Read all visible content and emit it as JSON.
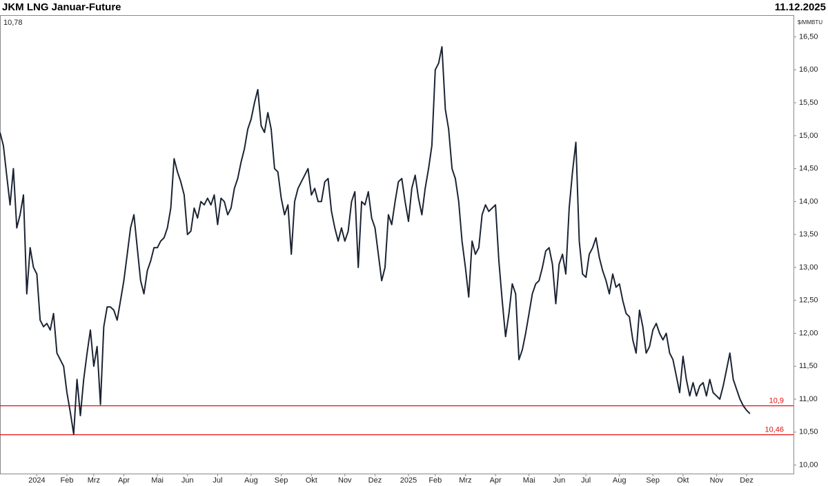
{
  "chart_data": {
    "type": "line",
    "title": "JKM LNG Januar-Future",
    "date": "11.12.2025",
    "last_value_label": "10,78",
    "y_unit": "$/MMBTU",
    "series": [
      {
        "name": "JKM LNG Januar-Future",
        "color": "#1b2333",
        "values": [
          15.05,
          14.85,
          14.4,
          13.95,
          14.5,
          13.6,
          13.8,
          14.1,
          12.6,
          13.3,
          13.0,
          12.9,
          12.2,
          12.1,
          12.15,
          12.05,
          12.3,
          11.7,
          11.6,
          11.5,
          11.1,
          10.8,
          10.47,
          11.3,
          10.75,
          11.3,
          11.7,
          12.05,
          11.5,
          11.8,
          10.92,
          12.1,
          12.4,
          12.4,
          12.35,
          12.2,
          12.5,
          12.8,
          13.2,
          13.6,
          13.8,
          13.3,
          12.8,
          12.6,
          12.95,
          13.1,
          13.3,
          13.3,
          13.4,
          13.45,
          13.6,
          13.9,
          14.65,
          14.45,
          14.3,
          14.1,
          13.5,
          13.55,
          13.9,
          13.75,
          14.0,
          13.95,
          14.05,
          13.95,
          14.1,
          13.65,
          14.05,
          14.0,
          13.8,
          13.9,
          14.2,
          14.35,
          14.6,
          14.8,
          15.1,
          15.25,
          15.5,
          15.7,
          15.15,
          15.05,
          15.35,
          15.1,
          14.5,
          14.45,
          14.05,
          13.8,
          13.95,
          13.2,
          14.0,
          14.2,
          14.3,
          14.4,
          14.5,
          14.1,
          14.2,
          14.0,
          14.0,
          14.3,
          14.35,
          13.85,
          13.6,
          13.4,
          13.6,
          13.4,
          13.55,
          14.0,
          14.15,
          13.0,
          14.0,
          13.95,
          14.15,
          13.75,
          13.6,
          13.2,
          12.8,
          13.0,
          13.8,
          13.65,
          14.0,
          14.3,
          14.35,
          14.0,
          13.7,
          14.2,
          14.4,
          14.05,
          13.8,
          14.2,
          14.5,
          14.85,
          16.0,
          16.1,
          16.35,
          15.4,
          15.1,
          14.5,
          14.35,
          14.0,
          13.4,
          13.0,
          12.55,
          13.4,
          13.2,
          13.3,
          13.8,
          13.95,
          13.85,
          13.9,
          13.95,
          13.1,
          12.5,
          11.95,
          12.3,
          12.75,
          12.6,
          11.6,
          11.75,
          12.0,
          12.3,
          12.6,
          12.75,
          12.8,
          13.0,
          13.25,
          13.3,
          13.05,
          12.45,
          13.05,
          13.2,
          12.9,
          13.9,
          14.45,
          14.9,
          13.4,
          12.9,
          12.85,
          13.2,
          13.3,
          13.45,
          13.15,
          12.95,
          12.8,
          12.6,
          12.9,
          12.7,
          12.75,
          12.5,
          12.3,
          12.25,
          11.9,
          11.7,
          12.35,
          12.1,
          11.7,
          11.8,
          12.05,
          12.15,
          12.0,
          11.9,
          12.0,
          11.7,
          11.6,
          11.35,
          11.1,
          11.65,
          11.3,
          11.05,
          11.25,
          11.05,
          11.2,
          11.25,
          11.05,
          11.3,
          11.1,
          11.05,
          11.0,
          11.2,
          11.45,
          11.7,
          11.3,
          11.15,
          11.0,
          10.9,
          10.83,
          10.78
        ]
      }
    ],
    "xlim": [
      0,
      237
    ],
    "xticks": [
      {
        "value": 11,
        "label": "2024"
      },
      {
        "value": 20,
        "label": "Feb"
      },
      {
        "value": 28,
        "label": "Mrz"
      },
      {
        "value": 37,
        "label": "Apr"
      },
      {
        "value": 47,
        "label": "Mai"
      },
      {
        "value": 56,
        "label": "Jun"
      },
      {
        "value": 65,
        "label": "Jul"
      },
      {
        "value": 75,
        "label": "Aug"
      },
      {
        "value": 84,
        "label": "Sep"
      },
      {
        "value": 93,
        "label": "Okt"
      },
      {
        "value": 103,
        "label": "Nov"
      },
      {
        "value": 112,
        "label": "Dez"
      },
      {
        "value": 122,
        "label": "2025"
      },
      {
        "value": 130,
        "label": "Feb"
      },
      {
        "value": 139,
        "label": "Mrz"
      },
      {
        "value": 148,
        "label": "Apr"
      },
      {
        "value": 158,
        "label": "Mai"
      },
      {
        "value": 167,
        "label": "Jun"
      },
      {
        "value": 175,
        "label": "Jul"
      },
      {
        "value": 185,
        "label": "Aug"
      },
      {
        "value": 195,
        "label": "Sep"
      },
      {
        "value": 204,
        "label": "Okt"
      },
      {
        "value": 214,
        "label": "Nov"
      },
      {
        "value": 223,
        "label": "Dez"
      }
    ],
    "ylim": [
      9.87,
      16.83
    ],
    "yticks": [
      {
        "value": 10,
        "label": "10,00"
      },
      {
        "value": 10.5,
        "label": "10,50"
      },
      {
        "value": 11,
        "label": "11,00"
      },
      {
        "value": 11.5,
        "label": "11,50"
      },
      {
        "value": 12,
        "label": "12,00"
      },
      {
        "value": 12.5,
        "label": "12,50"
      },
      {
        "value": 13,
        "label": "13,00"
      },
      {
        "value": 13.5,
        "label": "13,50"
      },
      {
        "value": 14,
        "label": "14,00"
      },
      {
        "value": 14.5,
        "label": "14,50"
      },
      {
        "value": 15,
        "label": "15,00"
      },
      {
        "value": 15.5,
        "label": "15,50"
      },
      {
        "value": 16,
        "label": "16,00"
      },
      {
        "value": 16.5,
        "label": "16,50"
      }
    ],
    "hlines": [
      {
        "value": 10.9,
        "label": "10,9",
        "color": "#e01010"
      },
      {
        "value": 10.46,
        "label": "10,46",
        "color": "#e01010"
      }
    ]
  }
}
